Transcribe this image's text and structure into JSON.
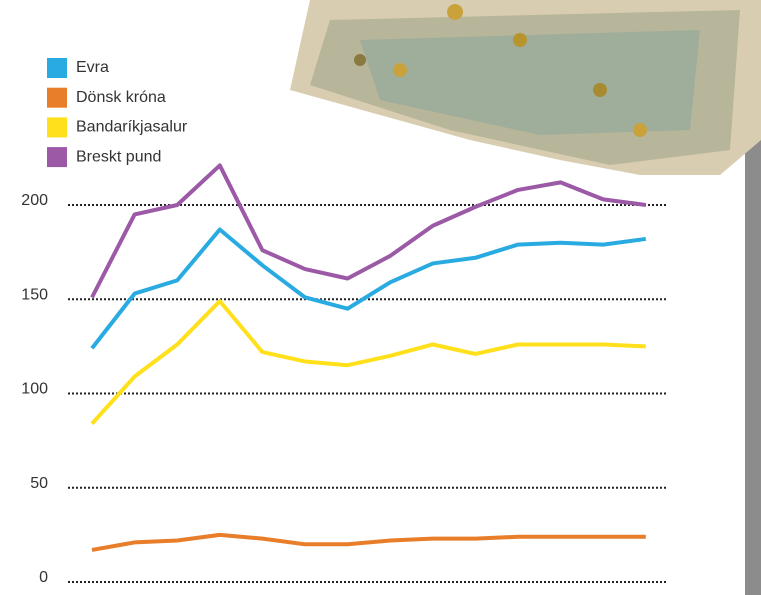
{
  "chart_data": {
    "type": "line",
    "categories": [
      null,
      null,
      null,
      null,
      null,
      null,
      null,
      null,
      null,
      null,
      null,
      null,
      null,
      null
    ],
    "series": [
      {
        "name": "Evra",
        "color": "#29abe2",
        "values": [
          124,
          153,
          160,
          187,
          168,
          151,
          145,
          159,
          169,
          172,
          179,
          180,
          179,
          182
        ]
      },
      {
        "name": "Dönsk króna",
        "color": "#e87d2a",
        "values": [
          17,
          21,
          22,
          25,
          23,
          20,
          20,
          22,
          23,
          23,
          24,
          24,
          24,
          24
        ]
      },
      {
        "name": "Bandaríkjasalur",
        "color": "#ffe01a",
        "values": [
          84,
          109,
          126,
          149,
          122,
          117,
          115,
          120,
          126,
          121,
          126,
          126,
          126,
          125
        ]
      },
      {
        "name": "Breskt pund",
        "color": "#9b59a6",
        "values": [
          151,
          195,
          200,
          221,
          176,
          166,
          161,
          173,
          189,
          199,
          208,
          212,
          203,
          200
        ]
      }
    ],
    "ylim": [
      0,
      200
    ],
    "yticks": [
      0,
      50,
      100,
      150,
      200
    ],
    "grid": true,
    "legend": "top-left"
  }
}
